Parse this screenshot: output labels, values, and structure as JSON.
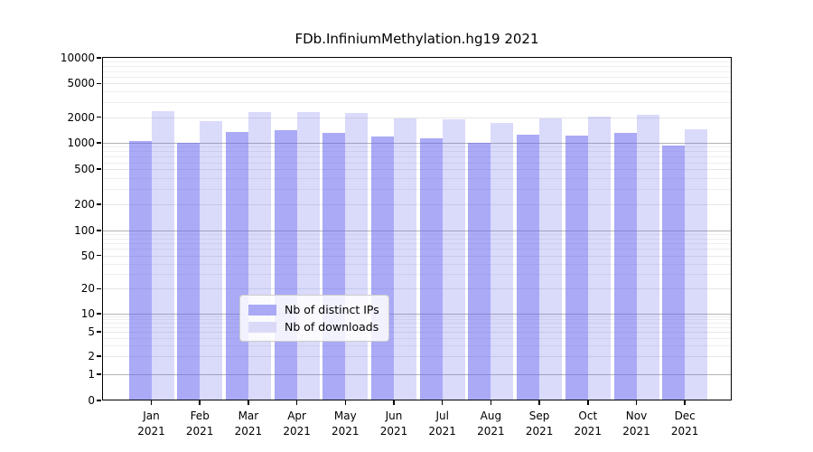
{
  "title": "FDb.InfiniumMethylation.hg19 2021",
  "chart_data": {
    "type": "bar",
    "title": "FDb.InfiniumMethylation.hg19 2021",
    "categories": [
      "Jan",
      "Feb",
      "Mar",
      "Apr",
      "May",
      "Jun",
      "Jul",
      "Aug",
      "Sep",
      "Oct",
      "Nov",
      "Dec"
    ],
    "year": "2021",
    "series": [
      {
        "name": "Nb of distinct IPs",
        "color": "rgba(100,100,240,0.55)",
        "swatch_color": "#a9a9f6",
        "values": [
          1050,
          1010,
          1350,
          1420,
          1300,
          1200,
          1140,
          1010,
          1240,
          1230,
          1320,
          940
        ]
      },
      {
        "name": "Nb of downloads",
        "color": "rgba(100,100,240,0.24)",
        "swatch_color": "#dadaf8",
        "values": [
          2370,
          1780,
          2290,
          2300,
          2230,
          1930,
          1870,
          1720,
          1950,
          2030,
          2150,
          1450
        ]
      }
    ],
    "yscale": "symlog",
    "ylim": [
      0,
      10000
    ],
    "y_ticks": [
      0,
      1,
      2,
      5,
      10,
      20,
      50,
      100,
      200,
      500,
      1000,
      2000,
      5000,
      10000
    ],
    "grid": true,
    "legend_position": "lower center"
  },
  "legend": {
    "items": [
      "Nb of distinct IPs",
      "Nb of downloads"
    ]
  }
}
